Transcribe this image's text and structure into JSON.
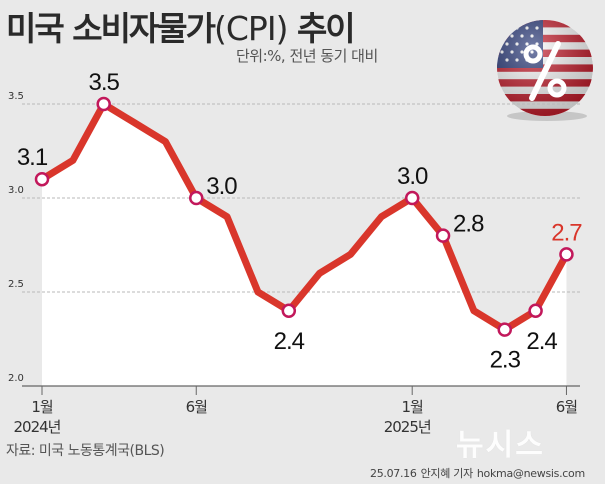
{
  "header": {
    "title_main": "미국 소비자물가",
    "title_paren": "(CPI)",
    "title_tail": " 추이",
    "unit": "단위:%, 전년 동기 대비"
  },
  "chart_data": {
    "type": "line",
    "title": "미국 소비자물가(CPI) 추이",
    "ylim": [
      2.0,
      3.6
    ],
    "yticks": [
      "2.0",
      "2.5",
      "3.0",
      "3.5"
    ],
    "x": [
      "2024-01",
      "2024-02",
      "2024-03",
      "2024-04",
      "2024-05",
      "2024-06",
      "2024-07",
      "2024-08",
      "2024-09",
      "2024-10",
      "2024-11",
      "2024-12",
      "2025-01",
      "2025-02",
      "2025-03",
      "2025-04",
      "2025-05",
      "2025-06"
    ],
    "values": [
      3.1,
      3.2,
      3.5,
      3.4,
      3.3,
      3.0,
      2.9,
      2.5,
      2.4,
      2.6,
      2.7,
      2.9,
      3.0,
      2.8,
      2.4,
      2.3,
      2.4,
      2.7
    ],
    "labels": [
      {
        "index": 0,
        "text": "3.1",
        "pos": "above-left"
      },
      {
        "index": 2,
        "text": "3.5",
        "pos": "above"
      },
      {
        "index": 5,
        "text": "3.0",
        "pos": "right"
      },
      {
        "index": 8,
        "text": "2.4",
        "pos": "below"
      },
      {
        "index": 12,
        "text": "3.0",
        "pos": "above"
      },
      {
        "index": 13,
        "text": "2.8",
        "pos": "right"
      },
      {
        "index": 15,
        "text": "2.3",
        "pos": "below"
      },
      {
        "index": 16,
        "text": "2.4",
        "pos": "below-right"
      },
      {
        "index": 17,
        "text": "2.7",
        "pos": "above",
        "highlight": true
      }
    ],
    "markers": [
      0,
      2,
      5,
      8,
      12,
      13,
      15,
      16,
      17
    ],
    "xtick_labels": [
      {
        "index": 0,
        "month": "1월",
        "year": "2024년"
      },
      {
        "index": 5,
        "month": "6월",
        "year": ""
      },
      {
        "index": 12,
        "month": "1월",
        "year": "2025년"
      },
      {
        "index": 17,
        "month": "6월",
        "year": ""
      }
    ],
    "colors": {
      "line": "#d9362b",
      "highlight_label": "#d9362b",
      "area": "#ffffff",
      "grid": "#b9b9b9"
    },
    "grid": true
  },
  "source": "자료: 미국 노동통계국(BLS)",
  "logo": "뉴시스",
  "footer": {
    "date": "25.07.16",
    "author": "안지혜 기자",
    "email": "hokma@newsis.com"
  },
  "icons": {
    "badge": "us-flag-percent-icon"
  }
}
